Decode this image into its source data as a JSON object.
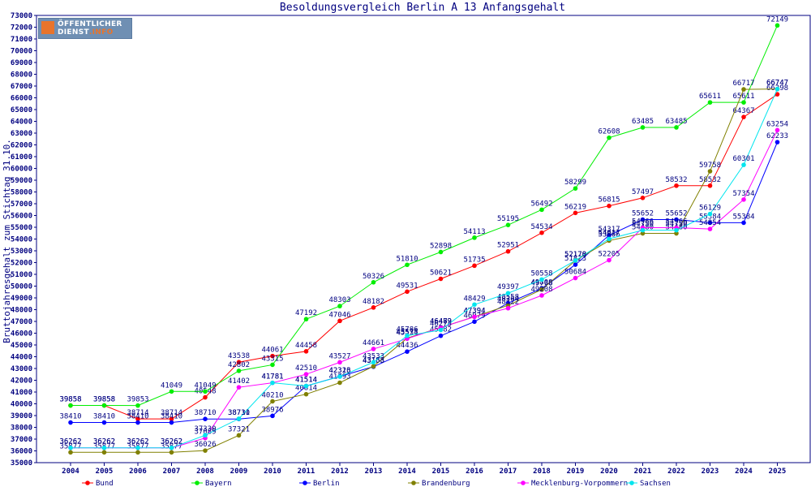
{
  "chart_data": {
    "type": "line",
    "title": "Besoldungsvergleich Berlin A 13 Anfangsgehalt",
    "ylabel": "Bruttojahresgehalt zum Stichtag 31.10.",
    "xlabel": "",
    "categories": [
      "2004",
      "2005",
      "2006",
      "2007",
      "2008",
      "2009",
      "2010",
      "2011",
      "2012",
      "2013",
      "2014",
      "2015",
      "2016",
      "2017",
      "2018",
      "2019",
      "2020",
      "2021",
      "2022",
      "2023",
      "2024",
      "2025"
    ],
    "ylim": [
      35000,
      73000
    ],
    "ytick_step": 1000,
    "grid": false,
    "legend_position": "bottom",
    "logo_text": "ÖFFENTLICHER DIENST.INFO",
    "series": [
      {
        "name": "Bund",
        "color": "#ff0000",
        "values": [
          39858,
          39858,
          38714,
          38714,
          40548,
          43538,
          44061,
          44458,
          47046,
          48182,
          49531,
          50621,
          51735,
          52951,
          54534,
          56219,
          56815,
          57497,
          58532,
          58532,
          64367,
          66298
        ]
      },
      {
        "name": "Bayern",
        "color": "#00ee00",
        "values": [
          39858,
          39858,
          39853,
          41049,
          41049,
          42802,
          43315,
          47192,
          48303,
          50326,
          51810,
          52898,
          54113,
          55195,
          56492,
          58299,
          62608,
          63485,
          63485,
          65611,
          65611,
          72149
        ]
      },
      {
        "name": "Berlin",
        "color": "#0000ff",
        "values": [
          38410,
          38410,
          38410,
          38410,
          38710,
          38710,
          38976,
          41514,
          42326,
          43153,
          44436,
          45782,
          46979,
          48558,
          49808,
          51823,
          54317,
          55652,
          55652,
          55384,
          55384,
          62233
        ]
      },
      {
        "name": "Brandenburg",
        "color": "#808000",
        "values": [
          35877,
          35877,
          35877,
          35877,
          36026,
          37321,
          40210,
          40814,
          41793,
          43188,
          45578,
          46482,
          47394,
          48364,
          49708,
          52170,
          53866,
          54480,
          54480,
          59758,
          66717,
          66747
        ]
      },
      {
        "name": "Mecklenburg-Vorpommern",
        "color": "#ff00ff",
        "values": [
          36262,
          36262,
          36262,
          36262,
          37089,
          41402,
          41781,
          42510,
          43527,
          44661,
          45531,
          46479,
          47394,
          48122,
          49208,
          50684,
          52205,
          54966,
          54966,
          54854,
          57354,
          63254
        ]
      },
      {
        "name": "Sachsen",
        "color": "#00e5ee",
        "values": [
          36262,
          36262,
          36262,
          36262,
          37330,
          38731,
          41781,
          41514,
          42313,
          43533,
          45786,
          46273,
          48429,
          49397,
          50558,
          52178,
          54017,
          54750,
          54750,
          56129,
          60301,
          66747
        ]
      }
    ]
  }
}
